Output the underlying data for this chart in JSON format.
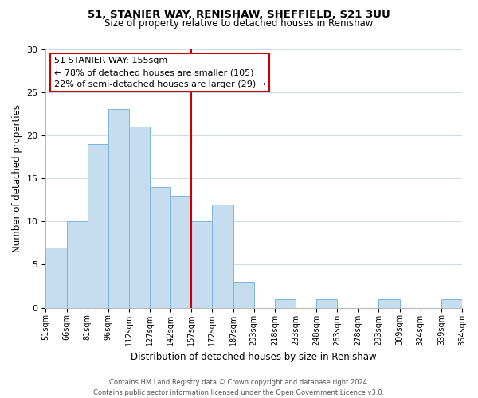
{
  "title1": "51, STANIER WAY, RENISHAW, SHEFFIELD, S21 3UU",
  "title2": "Size of property relative to detached houses in Renishaw",
  "xlabel": "Distribution of detached houses by size in Renishaw",
  "ylabel": "Number of detached properties",
  "bin_labels": [
    "51sqm",
    "66sqm",
    "81sqm",
    "96sqm",
    "112sqm",
    "127sqm",
    "142sqm",
    "157sqm",
    "172sqm",
    "187sqm",
    "203sqm",
    "218sqm",
    "233sqm",
    "248sqm",
    "263sqm",
    "278sqm",
    "293sqm",
    "309sqm",
    "324sqm",
    "339sqm",
    "354sqm"
  ],
  "bar_heights": [
    7,
    10,
    19,
    23,
    21,
    14,
    13,
    10,
    12,
    3,
    0,
    1,
    0,
    1,
    0,
    0,
    1,
    0,
    0,
    1
  ],
  "bar_color": "#c6ddef",
  "bar_edge_color": "#7db8d8",
  "vline_x_index": 7,
  "vline_color": "#cc0000",
  "annotation_title": "51 STANIER WAY: 155sqm",
  "annotation_line1": "← 78% of detached houses are smaller (105)",
  "annotation_line2": "22% of semi-detached houses are larger (29) →",
  "annotation_box_color": "#ffffff",
  "annotation_box_edge": "#cc0000",
  "ylim": [
    0,
    30
  ],
  "yticks": [
    0,
    5,
    10,
    15,
    20,
    25,
    30
  ],
  "footer1": "Contains HM Land Registry data © Crown copyright and database right 2024.",
  "footer2": "Contains public sector information licensed under the Open Government Licence v3.0.",
  "bg_color": "#ffffff",
  "grid_color": "#d0dce8"
}
